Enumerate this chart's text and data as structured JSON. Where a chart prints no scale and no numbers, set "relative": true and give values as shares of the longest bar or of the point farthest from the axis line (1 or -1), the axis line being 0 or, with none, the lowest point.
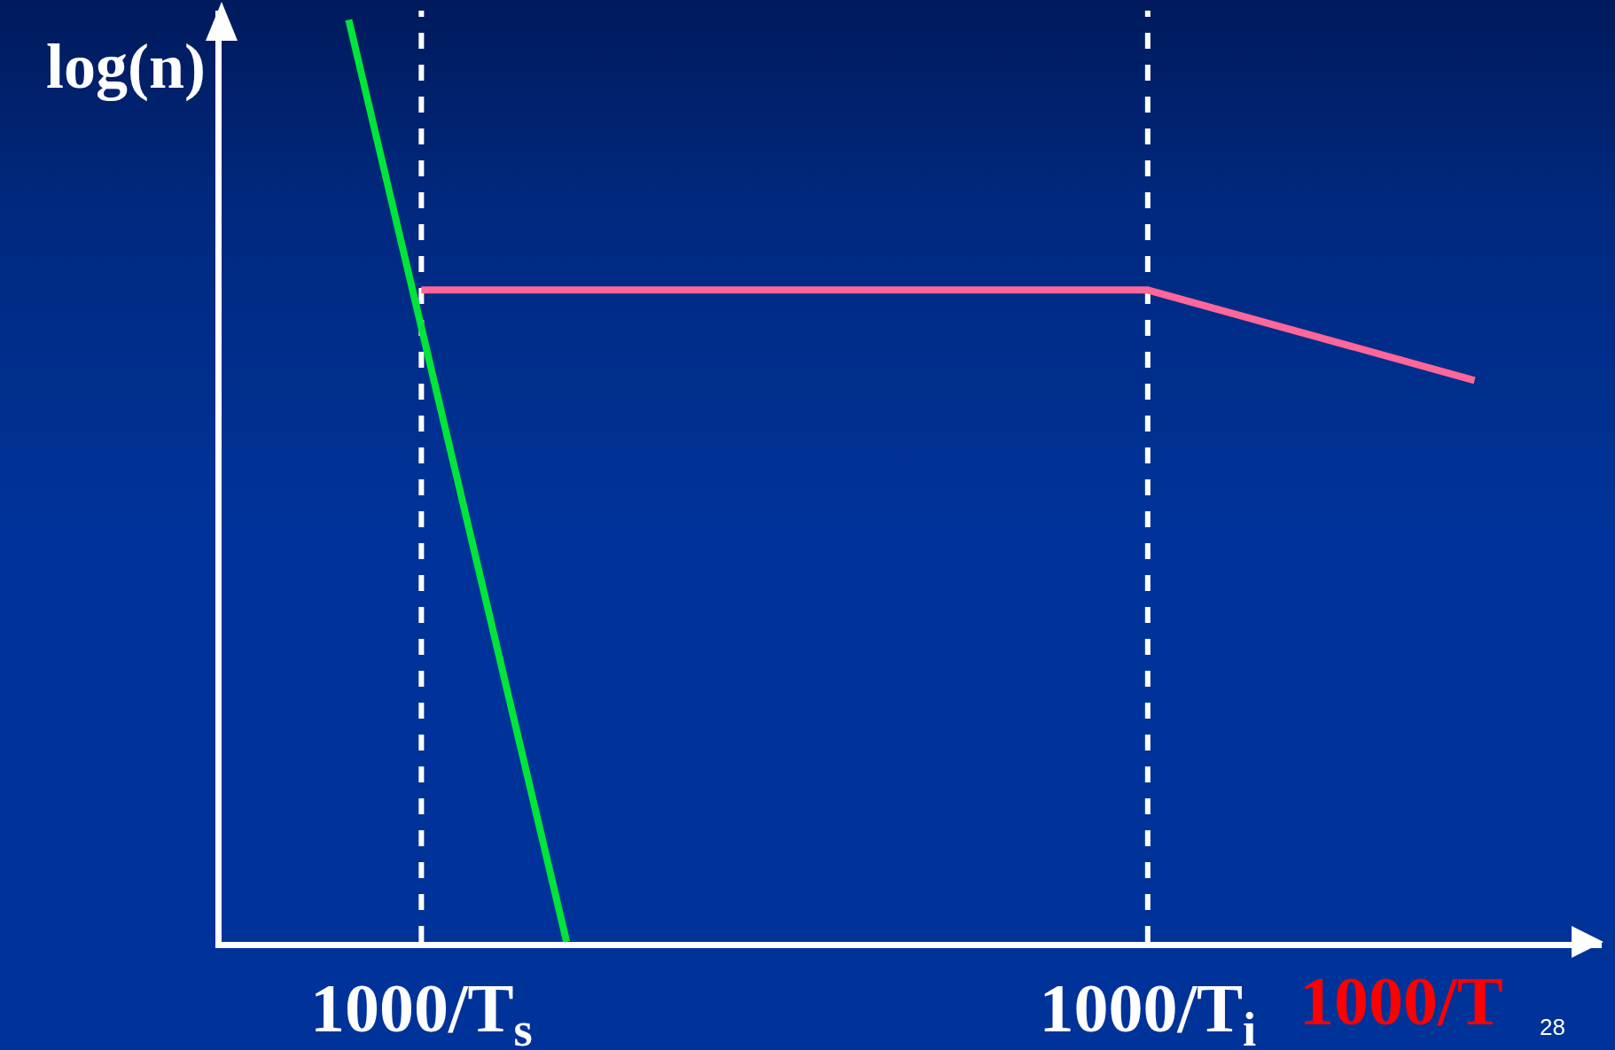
{
  "chart_data": {
    "type": "line",
    "relative": true,
    "ylabel": "log(n)",
    "xlabel": "1000/T",
    "categories": [
      null,
      null,
      null,
      null,
      null,
      "1000/T$_{s}$",
      null,
      null,
      null,
      null,
      null,
      null,
      null,
      null,
      null,
      null,
      null,
      null,
      null,
      null,
      null,
      null,
      null,
      null,
      null,
      "1000/T$_{i}$",
      null,
      null,
      null,
      null,
      null,
      null,
      null,
      null,
      null,
      null,
      null,
      null
    ],
    "series": [
      {
        "color": "#00e53a",
        "values": [
          null,
          null,
          null,
          1,
          null,
          null,
          null,
          null,
          null,
          0,
          null,
          null,
          null,
          null,
          null,
          null,
          null,
          null,
          null,
          null,
          null,
          null,
          null,
          null,
          null,
          null,
          null,
          null,
          null,
          null,
          null,
          null,
          null,
          null,
          null,
          null,
          null,
          null
        ]
      },
      {
        "color": "#ff6699",
        "values": [
          null,
          null,
          null,
          null,
          null,
          0.707,
          null,
          null,
          null,
          null,
          null,
          null,
          null,
          null,
          null,
          null,
          null,
          null,
          null,
          null,
          null,
          null,
          null,
          null,
          null,
          0.707,
          null,
          null,
          null,
          null,
          null,
          null,
          null,
          null,
          0.609,
          null,
          null,
          null
        ]
      }
    ],
    "ref_lines": [
      {
        "axis": "x",
        "value": "1000/T$_{s}$",
        "color": "#ffffff",
        "line_style": "dashed"
      },
      {
        "axis": "x",
        "value": "1000/T$_{i}$",
        "color": "#ffffff",
        "line_style": "dashed"
      }
    ],
    "annotations": [
      "28"
    ],
    "grid": false,
    "marker": "none",
    "line_style": "solid"
  }
}
